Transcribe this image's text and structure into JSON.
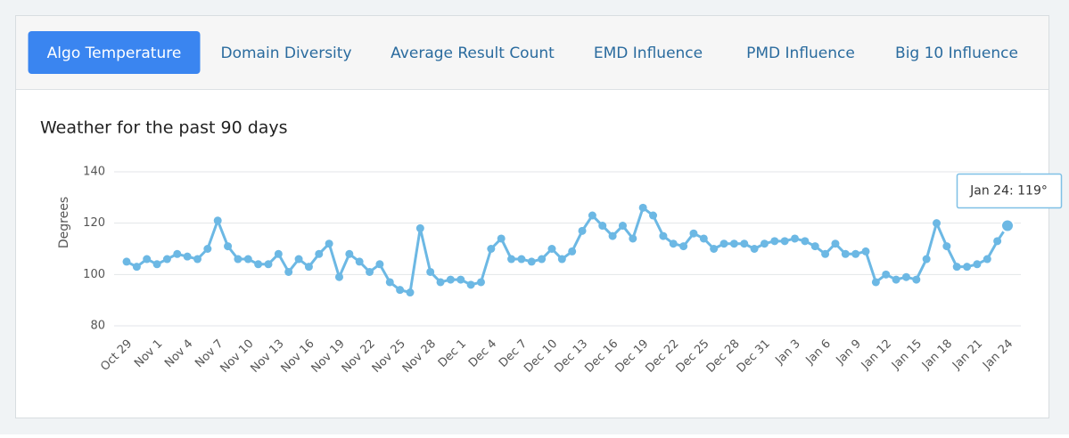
{
  "tabs": [
    "Algo Temperature",
    "Domain Diversity",
    "Average Result Count",
    "EMD Influence",
    "PMD Influence",
    "Big 10 Influence"
  ],
  "active_tab": 0,
  "chart_data": {
    "type": "line",
    "title": "Weather for the past 90 days",
    "y_label": "Degrees",
    "categories": [
      "Oct 29",
      null,
      null,
      "Nov 1",
      null,
      null,
      "Nov 4",
      null,
      null,
      "Nov 7",
      null,
      null,
      "Nov 10",
      null,
      null,
      "Nov 13",
      null,
      null,
      "Nov 16",
      null,
      null,
      "Nov 19",
      null,
      null,
      "Nov 22",
      null,
      null,
      "Nov 25",
      null,
      null,
      "Nov 28",
      null,
      null,
      "Dec 1",
      null,
      null,
      "Dec 4",
      null,
      null,
      "Dec 7",
      null,
      null,
      "Dec 10",
      null,
      null,
      "Dec 13",
      null,
      null,
      "Dec 16",
      null,
      null,
      "Dec 19",
      null,
      null,
      "Dec 22",
      null,
      null,
      "Dec 25",
      null,
      null,
      "Dec 28",
      null,
      null,
      "Dec 31",
      null,
      null,
      "Jan 3",
      null,
      null,
      "Jan 6",
      null,
      null,
      "Jan 9",
      null,
      null,
      "Jan 12",
      null,
      null,
      "Jan 15",
      null,
      null,
      "Jan 18",
      null,
      null,
      "Jan 21",
      null,
      null,
      "Jan 24"
    ],
    "values": [
      105,
      103,
      106,
      104,
      106,
      108,
      107,
      106,
      110,
      121,
      111,
      106,
      106,
      104,
      104,
      108,
      101,
      106,
      103,
      108,
      112,
      99,
      108,
      105,
      101,
      104,
      97,
      94,
      93,
      118,
      101,
      97,
      98,
      98,
      96,
      97,
      110,
      114,
      106,
      106,
      105,
      106,
      110,
      106,
      109,
      117,
      123,
      119,
      115,
      119,
      114,
      126,
      123,
      115,
      112,
      111,
      116,
      114,
      110,
      112,
      112,
      112,
      110,
      112,
      113,
      113,
      114,
      113,
      111,
      108,
      112,
      108,
      108,
      109,
      97,
      100,
      98,
      99,
      98,
      106,
      120,
      111,
      103,
      103,
      104,
      106,
      113,
      119
    ],
    "color": "#6cb8e4",
    "ylim": [
      80,
      140
    ],
    "yticks": [
      80,
      100,
      120,
      140
    ],
    "grid": true,
    "tooltip": "Jan 24: 119°"
  }
}
